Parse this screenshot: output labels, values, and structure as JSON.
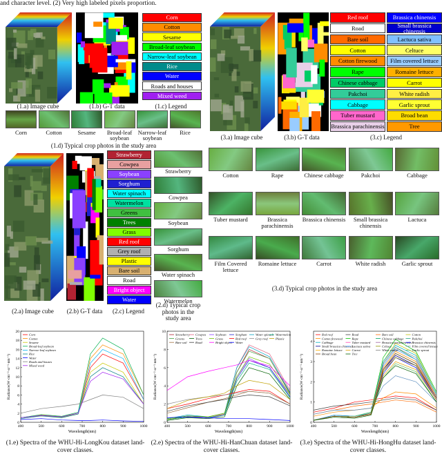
{
  "header_text": "and character level. (2) Very high labeled pixels proportion.",
  "longkou": {
    "cube_caption": "(1.a) Image cube",
    "gt_caption": "(1.b) G-T data",
    "legend_caption": "(1.c) Legend",
    "legend": [
      {
        "label": "Corn",
        "color": "#ff0000"
      },
      {
        "label": "Cotton",
        "color": "#ff8c00"
      },
      {
        "label": "Sesame",
        "color": "#ffff00"
      },
      {
        "label": "Broad-leaf soybean",
        "color": "#00ff00"
      },
      {
        "label": "Narrow-leaf soybean",
        "color": "#00ffff"
      },
      {
        "label": "Rice",
        "color": "#008b8b"
      },
      {
        "label": "Water",
        "color": "#0000ff"
      },
      {
        "label": "Roads and houses",
        "color": "#ffffff"
      },
      {
        "label": "Mixed weed",
        "color": "#a020f0"
      }
    ],
    "photos": [
      "Corn",
      "Cotton",
      "Sesame",
      "Broad-leaf soybean",
      "Narrow-leaf soybean",
      "Rice"
    ],
    "photos_caption": "(1.d) Typical crop photos in the study area"
  },
  "hanchuan": {
    "cube_caption": "(2.a) Image cube",
    "gt_caption": "(2.b) G-T data",
    "legend_caption": "(2.c) Legend",
    "legend": [
      {
        "label": "Strawberry",
        "color": "#b22232"
      },
      {
        "label": "Cowpea",
        "color": "#e8a0a0"
      },
      {
        "label": "Soybean",
        "color": "#8a40ff"
      },
      {
        "label": "Sorghum",
        "color": "#2020d0"
      },
      {
        "label": "Water spinach",
        "color": "#00ffff"
      },
      {
        "label": "Watermelon",
        "color": "#00e0a0"
      },
      {
        "label": "Greens",
        "color": "#40c040"
      },
      {
        "label": "Trees",
        "color": "#008000"
      },
      {
        "label": "Grass",
        "color": "#80ff00"
      },
      {
        "label": "Red roof",
        "color": "#ff0000"
      },
      {
        "label": "Grey roof",
        "color": "#b0b0b0"
      },
      {
        "label": "Plastic",
        "color": "#ffff00"
      },
      {
        "label": "Bare soil",
        "color": "#d8b070"
      },
      {
        "label": "Road",
        "color": "#ffffff"
      },
      {
        "label": "Bright object",
        "color": "#ff00ff"
      },
      {
        "label": "Water",
        "color": "#0000ff"
      }
    ],
    "photos": [
      "Strawberry",
      "Cowpea",
      "Soybean",
      "Sorghum",
      "Water spinach",
      "Watermelon"
    ],
    "photos_caption": "(2.d) Typical crop photos in the study area"
  },
  "honghu": {
    "cube_caption": "(3.a) Image cube",
    "gt_caption": "(3.b) G-T data",
    "legend_caption": "(3.c) Legend",
    "legend": [
      {
        "label": "Red roof",
        "color": "#ff0000"
      },
      {
        "label": "Road",
        "color": "#ffffff"
      },
      {
        "label": "Bare soil",
        "color": "#ff6a00"
      },
      {
        "label": "Cotton",
        "color": "#ffff00"
      },
      {
        "label": "Cotton firewood",
        "color": "#ff8c00"
      },
      {
        "label": "Rape",
        "color": "#00ff00"
      },
      {
        "label": "Chinese cabbage",
        "color": "#00cc66"
      },
      {
        "label": "Pakchoi",
        "color": "#33cc99"
      },
      {
        "label": "Cabbage",
        "color": "#00ffff"
      },
      {
        "label": "Tuber mustard",
        "color": "#ff66cc"
      },
      {
        "label": "Brassica parachinensis",
        "color": "#e8d0e8"
      },
      {
        "label": "Brassica chinensis",
        "color": "#0000ff"
      },
      {
        "label": "Small brassica chinensis",
        "color": "#0000cc"
      },
      {
        "label": "Lactuca sativa",
        "color": "#80c0ff"
      },
      {
        "label": "Celtuce",
        "color": "#ffff66"
      },
      {
        "label": "Film covered lettuce",
        "color": "#99ccff"
      },
      {
        "label": "Romaine lettuce",
        "color": "#ffb000"
      },
      {
        "label": "Carrot",
        "color": "#ffff00"
      },
      {
        "label": "White radish",
        "color": "#ffee44"
      },
      {
        "label": "Garlic sprout",
        "color": "#ffff33"
      },
      {
        "label": "Broad bean",
        "color": "#ffdd00"
      },
      {
        "label": "Tree",
        "color": "#ff9900"
      }
    ],
    "photos": [
      "Cotton",
      "Rape",
      "Chinese cabbage",
      "Pakchoi",
      "Cabbage",
      "Tuber mustard",
      "Brassica parachinensis",
      "Brassica chinensis",
      "Small brassica chinensis",
      "Lactuca",
      "Film Covered lettuce",
      "Romaine lettuce",
      "Carrot",
      "White radish",
      "Garlic sprout"
    ],
    "photos_caption": "(3.d) Typical crop photos in the study area"
  },
  "spectra": [
    {
      "type": "line",
      "caption": "(1.e) Spectra of the WHU-Hi-LongKou dataset land-cover classes.",
      "xlabel": "Wavelength(nm)",
      "ylabel": "Radiance(W·cm⁻²·sr⁻¹·nm⁻¹)",
      "xlim": [
        400,
        1000
      ],
      "xticks": [
        400,
        500,
        600,
        700,
        800,
        900,
        1000
      ],
      "ylim": [
        0,
        20
      ],
      "yticks": [
        0,
        2,
        4,
        6,
        8,
        10,
        12,
        14,
        16,
        18,
        20
      ],
      "x": [
        400,
        500,
        600,
        680,
        740,
        800,
        900,
        1000
      ],
      "series": [
        {
          "name": "Corn",
          "color": "#ff0000",
          "values": [
            1,
            1.5,
            1.2,
            2,
            12,
            15,
            13,
            5
          ]
        },
        {
          "name": "Cotton",
          "color": "#ff8c00",
          "values": [
            1,
            1.6,
            1.3,
            2,
            14,
            17,
            15,
            6
          ]
        },
        {
          "name": "Sesame",
          "color": "#c8c800",
          "values": [
            1,
            1.4,
            1.1,
            1.8,
            11,
            13,
            11,
            4
          ]
        },
        {
          "name": "Broad-leaf soybean",
          "color": "#00b050",
          "values": [
            1,
            1.7,
            1.3,
            2.2,
            15,
            18.5,
            16,
            6
          ]
        },
        {
          "name": "Narrow-leaf soybean",
          "color": "#00b0f0",
          "values": [
            1,
            1.5,
            1.2,
            2,
            13,
            16,
            14,
            5
          ]
        },
        {
          "name": "Rice",
          "color": "#008080",
          "values": [
            0.8,
            1.4,
            1,
            1.8,
            10,
            12,
            10,
            4
          ]
        },
        {
          "name": "Water",
          "color": "#0000ff",
          "values": [
            0.6,
            0.8,
            0.5,
            0.4,
            0.4,
            0.5,
            0.3,
            0.2
          ]
        },
        {
          "name": "Roads and houses",
          "color": "#808080",
          "values": [
            2,
            3,
            3.5,
            4,
            5,
            6,
            5.5,
            3
          ]
        },
        {
          "name": "Mixed weed",
          "color": "#a020f0",
          "values": [
            1,
            1.5,
            1.2,
            2,
            9,
            11,
            9.5,
            4
          ]
        }
      ]
    },
    {
      "type": "line",
      "caption": "(2.e) Spectra of the WHU-Hi-HanChuan dataset land-cover classes.",
      "xlabel": "Wavelength(nm)",
      "ylabel": "Radiance(W·cm⁻²·sr⁻¹·nm⁻¹)",
      "xlim": [
        400,
        1000
      ],
      "xticks": [
        400,
        500,
        600,
        700,
        800,
        900,
        1000
      ],
      "ylim": [
        0,
        10
      ],
      "yticks": [
        0,
        2,
        4,
        6,
        8,
        10
      ],
      "x": [
        400,
        500,
        600,
        680,
        740,
        800,
        900,
        1000
      ],
      "series": [
        {
          "name": "Strawberry",
          "color": "#b22232",
          "values": [
            0.3,
            0.6,
            0.5,
            0.9,
            5.5,
            8,
            7,
            3.2
          ]
        },
        {
          "name": "Cowpea",
          "color": "#e06080",
          "values": [
            0.3,
            0.7,
            0.5,
            0.9,
            6,
            8.5,
            7.5,
            3.5
          ]
        },
        {
          "name": "Soybean",
          "color": "#8a40ff",
          "values": [
            0.3,
            0.6,
            0.4,
            0.8,
            5,
            7,
            6,
            3
          ]
        },
        {
          "name": "Sorghum",
          "color": "#2020d0",
          "values": [
            0.3,
            0.6,
            0.5,
            0.8,
            4.8,
            6.8,
            6,
            2.8
          ]
        },
        {
          "name": "Water spinach",
          "color": "#00a0c0",
          "values": [
            0.4,
            0.8,
            0.6,
            1,
            6,
            8.3,
            7.2,
            3.3
          ]
        },
        {
          "name": "Watermelon",
          "color": "#00b080",
          "values": [
            0.3,
            0.6,
            0.5,
            0.8,
            4.5,
            6.5,
            5.8,
            2.7
          ]
        },
        {
          "name": "Greens",
          "color": "#40a040",
          "values": [
            0.4,
            0.7,
            0.6,
            1,
            5.5,
            7.8,
            7,
            3.1
          ]
        },
        {
          "name": "Trees",
          "color": "#006000",
          "values": [
            0.2,
            0.5,
            0.4,
            0.6,
            4,
            6,
            5.3,
            2.5
          ]
        },
        {
          "name": "Grass",
          "color": "#70c000",
          "values": [
            0.3,
            0.7,
            0.6,
            1,
            5,
            7.2,
            6.4,
            3
          ]
        },
        {
          "name": "Red roof",
          "color": "#ff0000",
          "values": [
            1.5,
            2,
            2.6,
            3,
            3.3,
            3.6,
            3.4,
            2
          ]
        },
        {
          "name": "Grey roof",
          "color": "#909090",
          "values": [
            2,
            2.5,
            2.8,
            3,
            3.2,
            3.4,
            3.2,
            2
          ]
        },
        {
          "name": "Plastic",
          "color": "#c0a000",
          "values": [
            1.5,
            2.4,
            2.8,
            3.2,
            4,
            4.6,
            4.2,
            2.5
          ]
        },
        {
          "name": "Bare soil",
          "color": "#a07040",
          "values": [
            1,
            1.6,
            2.2,
            2.6,
            3,
            3.4,
            3.2,
            2
          ]
        },
        {
          "name": "Road",
          "color": "#404040",
          "values": [
            1.2,
            1.8,
            2.2,
            2.5,
            2.8,
            3,
            2.8,
            1.8
          ]
        },
        {
          "name": "Bright object",
          "color": "#ff00ff",
          "values": [
            3.5,
            5,
            5.6,
            6,
            6.3,
            6.8,
            6.2,
            4
          ]
        },
        {
          "name": "Water",
          "color": "#0000ff",
          "values": [
            0.5,
            0.6,
            0.5,
            0.4,
            0.4,
            0.4,
            0.3,
            0.2
          ]
        }
      ]
    },
    {
      "type": "line",
      "caption": "(3.e) Spectra of the WHU-Hi-HongHu dataset land-cover classes.",
      "xlabel": "Wavelength(nm)",
      "ylabel": "Radiance(W·cm⁻²·sr⁻¹·nm⁻¹)",
      "xlim": [
        400,
        1000
      ],
      "xticks": [
        400,
        500,
        600,
        700,
        800,
        900,
        1000
      ],
      "ylim": [
        0,
        4.5
      ],
      "yticks": [
        0,
        1,
        2,
        3,
        4
      ],
      "x": [
        400,
        500,
        600,
        680,
        740,
        800,
        900,
        1000
      ],
      "series": [
        {
          "name": "Red roof",
          "color": "#ff0000",
          "values": [
            0.5,
            0.7,
            1,
            1.1,
            1.2,
            1.3,
            1.2,
            0.6
          ]
        },
        {
          "name": "Road",
          "color": "#404040",
          "values": [
            0.6,
            0.8,
            0.9,
            1,
            1.1,
            1.2,
            1.1,
            0.6
          ]
        },
        {
          "name": "Bare soil",
          "color": "#ff6a00",
          "values": [
            0.4,
            0.6,
            0.8,
            0.9,
            1,
            1.1,
            1,
            0.5
          ]
        },
        {
          "name": "Cotton",
          "color": "#c0c000",
          "values": [
            0.1,
            0.3,
            0.25,
            0.45,
            3,
            3.9,
            3.4,
            1.4
          ]
        },
        {
          "name": "Cotton firewood",
          "color": "#ff8c00",
          "values": [
            0.3,
            0.5,
            0.6,
            0.7,
            1.2,
            1.5,
            1.4,
            0.7
          ]
        },
        {
          "name": "Rape",
          "color": "#00c000",
          "values": [
            0.1,
            0.35,
            0.3,
            0.5,
            3.2,
            4.1,
            3.5,
            1.5
          ]
        },
        {
          "name": "Chinese cabbage",
          "color": "#00a060",
          "values": [
            0.1,
            0.3,
            0.25,
            0.45,
            2.9,
            3.7,
            3.1,
            1.3
          ]
        },
        {
          "name": "Pakchoi",
          "color": "#20a080",
          "values": [
            0.1,
            0.3,
            0.25,
            0.4,
            2.6,
            3.4,
            2.9,
            1.2
          ]
        },
        {
          "name": "Cabbage",
          "color": "#00b0c0",
          "values": [
            0.1,
            0.35,
            0.3,
            0.45,
            3,
            3.8,
            3.3,
            1.4
          ]
        },
        {
          "name": "Tuber mustard",
          "color": "#ff40b0",
          "values": [
            0.1,
            0.3,
            0.25,
            0.4,
            2.7,
            3.5,
            3,
            1.2
          ]
        },
        {
          "name": "Brassica parachinensis",
          "color": "#a060a0",
          "values": [
            0.1,
            0.3,
            0.25,
            0.4,
            2.5,
            3.3,
            2.8,
            1.1
          ]
        },
        {
          "name": "Brassica chinensis",
          "color": "#0000ff",
          "values": [
            0.1,
            0.3,
            0.25,
            0.4,
            2.4,
            3.2,
            2.7,
            1.1
          ]
        },
        {
          "name": "Small brassica chinensis",
          "color": "#000090",
          "values": [
            0.1,
            0.3,
            0.25,
            0.4,
            2.6,
            3.3,
            2.8,
            1.2
          ]
        },
        {
          "name": "Lactuca sativa",
          "color": "#4090ff",
          "values": [
            0.1,
            0.35,
            0.3,
            0.5,
            2.8,
            3.6,
            3.1,
            1.3
          ]
        },
        {
          "name": "Celtuce",
          "color": "#909000",
          "values": [
            0.1,
            0.3,
            0.25,
            0.45,
            2.5,
            3.2,
            2.8,
            1.2
          ]
        },
        {
          "name": "Film covered lettuce",
          "color": "#6090c0",
          "values": [
            0.4,
            0.6,
            0.6,
            0.7,
            1.8,
            2.3,
            2,
            1
          ]
        },
        {
          "name": "Romaine lettuce",
          "color": "#ffb000",
          "values": [
            0.1,
            0.3,
            0.25,
            0.4,
            2.7,
            3.5,
            3,
            1.3
          ]
        },
        {
          "name": "Carrot",
          "color": "#e0a000",
          "values": [
            0.1,
            0.3,
            0.25,
            0.4,
            2.3,
            3,
            2.6,
            1.1
          ]
        },
        {
          "name": "White radish",
          "color": "#808080",
          "values": [
            0.1,
            0.3,
            0.25,
            0.45,
            2.9,
            3.7,
            3.2,
            1.3
          ]
        },
        {
          "name": "Garlic sprout",
          "color": "#60c060",
          "values": [
            0.1,
            0.3,
            0.3,
            0.5,
            2.2,
            2.9,
            2.5,
            1
          ]
        },
        {
          "name": "Broad bean",
          "color": "#804000",
          "values": [
            0.1,
            0.3,
            0.25,
            0.4,
            2.6,
            3.4,
            2.9,
            1.2
          ]
        },
        {
          "name": "Tree",
          "color": "#006000",
          "values": [
            0.1,
            0.25,
            0.2,
            0.35,
            2.2,
            2.8,
            2.4,
            1
          ]
        }
      ]
    }
  ]
}
